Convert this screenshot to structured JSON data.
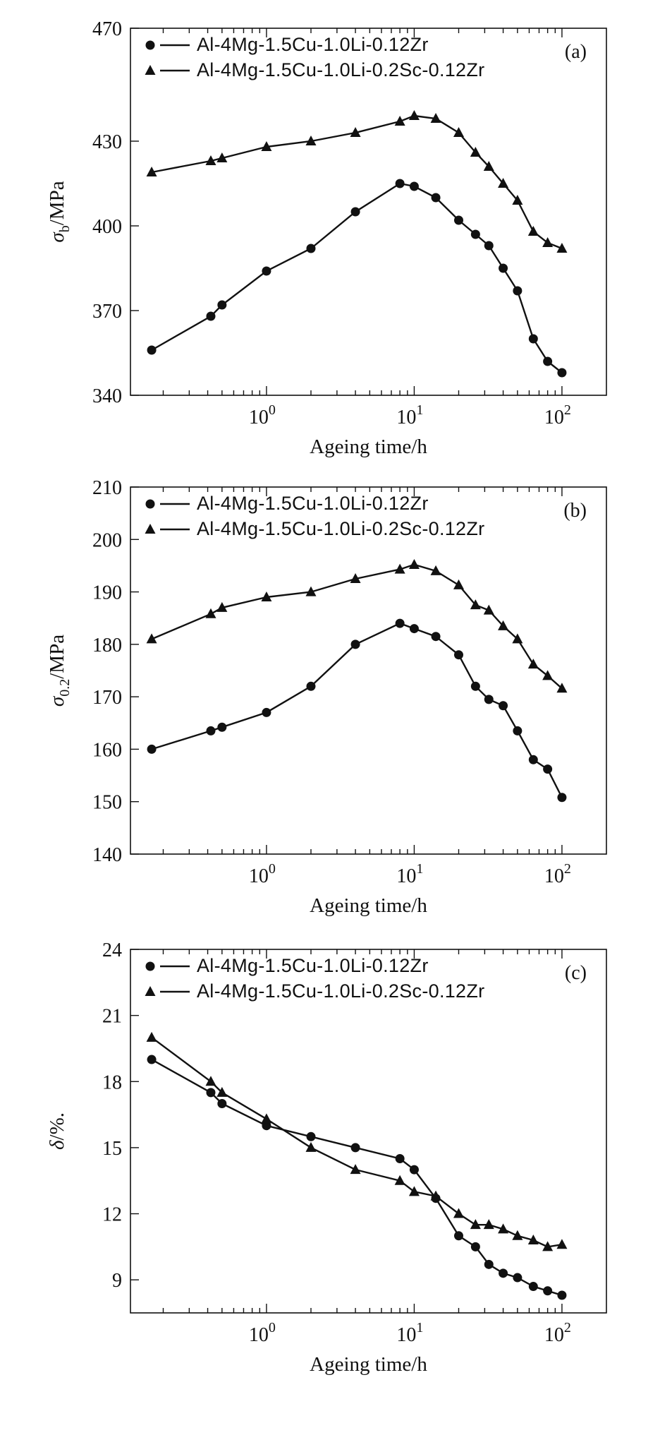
{
  "chart_data": [
    {
      "type": "line",
      "panel_label": "(a)",
      "xlabel": "Ageing time/h",
      "ylabel": "σb/MPa",
      "ylabel_main": "σ",
      "ylabel_sub": "b",
      "ylabel_unit": "/MPa",
      "xscale": "log",
      "xlim": [
        0.12,
        200
      ],
      "ylim": [
        340,
        470
      ],
      "yticks": [
        "340",
        "370",
        "400",
        "430",
        "470"
      ],
      "xticks": [
        {
          "base": "10",
          "exp": "0"
        },
        {
          "base": "10",
          "exp": "1"
        },
        {
          "base": "10",
          "exp": "2"
        }
      ],
      "legend_position": "top-left",
      "series": [
        {
          "name": "Al-4Mg-1.5Cu-1.0Li-0.12Zr",
          "marker": "circle",
          "x": [
            0.167,
            0.42,
            0.5,
            1,
            2,
            4,
            8,
            10,
            14,
            20,
            26,
            32,
            40,
            50,
            64,
            80,
            100
          ],
          "y": [
            356,
            368,
            372,
            384,
            392,
            405,
            415,
            414,
            410,
            402,
            397,
            393,
            385,
            377,
            360,
            352,
            348
          ]
        },
        {
          "name": "Al-4Mg-1.5Cu-1.0Li-0.2Sc-0.12Zr",
          "marker": "triangle",
          "x": [
            0.167,
            0.42,
            0.5,
            1,
            2,
            4,
            8,
            10,
            14,
            20,
            26,
            32,
            40,
            50,
            64,
            80,
            100
          ],
          "y": [
            419,
            423,
            424,
            428,
            430,
            433,
            437,
            439,
            438,
            433,
            426,
            421,
            415,
            409,
            398,
            394,
            392
          ]
        }
      ]
    },
    {
      "type": "line",
      "panel_label": "(b)",
      "xlabel": "Ageing time/h",
      "ylabel": "σ0.2/MPa",
      "ylabel_main": "σ",
      "ylabel_sub": "0.2",
      "ylabel_unit": "/MPa",
      "xscale": "log",
      "xlim": [
        0.12,
        200
      ],
      "ylim": [
        140,
        210
      ],
      "yticks": [
        "140",
        "150",
        "160",
        "170",
        "180",
        "190",
        "200",
        "210"
      ],
      "xticks": [
        {
          "base": "10",
          "exp": "0"
        },
        {
          "base": "10",
          "exp": "1"
        },
        {
          "base": "10",
          "exp": "2"
        }
      ],
      "legend_position": "top-left",
      "series": [
        {
          "name": "Al-4Mg-1.5Cu-1.0Li-0.12Zr",
          "marker": "circle",
          "x": [
            0.167,
            0.42,
            0.5,
            1,
            2,
            4,
            8,
            10,
            14,
            20,
            26,
            32,
            40,
            50,
            64,
            80,
            100
          ],
          "y": [
            160,
            163.5,
            164.2,
            167,
            172,
            180,
            184,
            183,
            181.5,
            178,
            172,
            169.5,
            168.3,
            163.5,
            158,
            156.2,
            150.8
          ]
        },
        {
          "name": "Al-4Mg-1.5Cu-1.0Li-0.2Sc-0.12Zr",
          "marker": "triangle",
          "x": [
            0.167,
            0.42,
            0.5,
            1,
            2,
            4,
            8,
            10,
            14,
            20,
            26,
            32,
            40,
            50,
            64,
            80,
            100
          ],
          "y": [
            181,
            185.8,
            187,
            189,
            190,
            192.5,
            194.3,
            195.2,
            194,
            191.3,
            187.5,
            186.5,
            183.5,
            181,
            176.2,
            174,
            171.6
          ]
        }
      ]
    },
    {
      "type": "line",
      "panel_label": "(c)",
      "xlabel": "Ageing time/h",
      "ylabel": "δ/%.",
      "ylabel_main": "δ",
      "ylabel_sub": "",
      "ylabel_unit": "/%.",
      "xscale": "log",
      "xlim": [
        0.12,
        200
      ],
      "ylim": [
        7.5,
        24
      ],
      "yticks": [
        "9",
        "12",
        "15",
        "18",
        "21",
        "24"
      ],
      "xticks": [
        {
          "base": "10",
          "exp": "0"
        },
        {
          "base": "10",
          "exp": "1"
        },
        {
          "base": "10",
          "exp": "2"
        }
      ],
      "legend_position": "top-left",
      "series": [
        {
          "name": "Al-4Mg-1.5Cu-1.0Li-0.12Zr",
          "marker": "circle",
          "x": [
            0.167,
            0.42,
            0.5,
            1,
            2,
            4,
            8,
            10,
            14,
            20,
            26,
            32,
            40,
            50,
            64,
            80,
            100
          ],
          "y": [
            19,
            17.5,
            17,
            16,
            15.5,
            15,
            14.5,
            14,
            12.7,
            11,
            10.5,
            9.7,
            9.3,
            9.1,
            8.7,
            8.5,
            8.3
          ]
        },
        {
          "name": "Al-4Mg-1.5Cu-1.0Li-0.2Sc-0.12Zr",
          "marker": "triangle",
          "x": [
            0.167,
            0.42,
            0.5,
            1,
            2,
            4,
            8,
            10,
            14,
            20,
            26,
            32,
            40,
            50,
            64,
            80,
            100
          ],
          "y": [
            20,
            18,
            17.5,
            16.3,
            15,
            14,
            13.5,
            13,
            12.8,
            12,
            11.5,
            11.5,
            11.3,
            11,
            10.8,
            10.5,
            10.6
          ]
        }
      ]
    }
  ]
}
